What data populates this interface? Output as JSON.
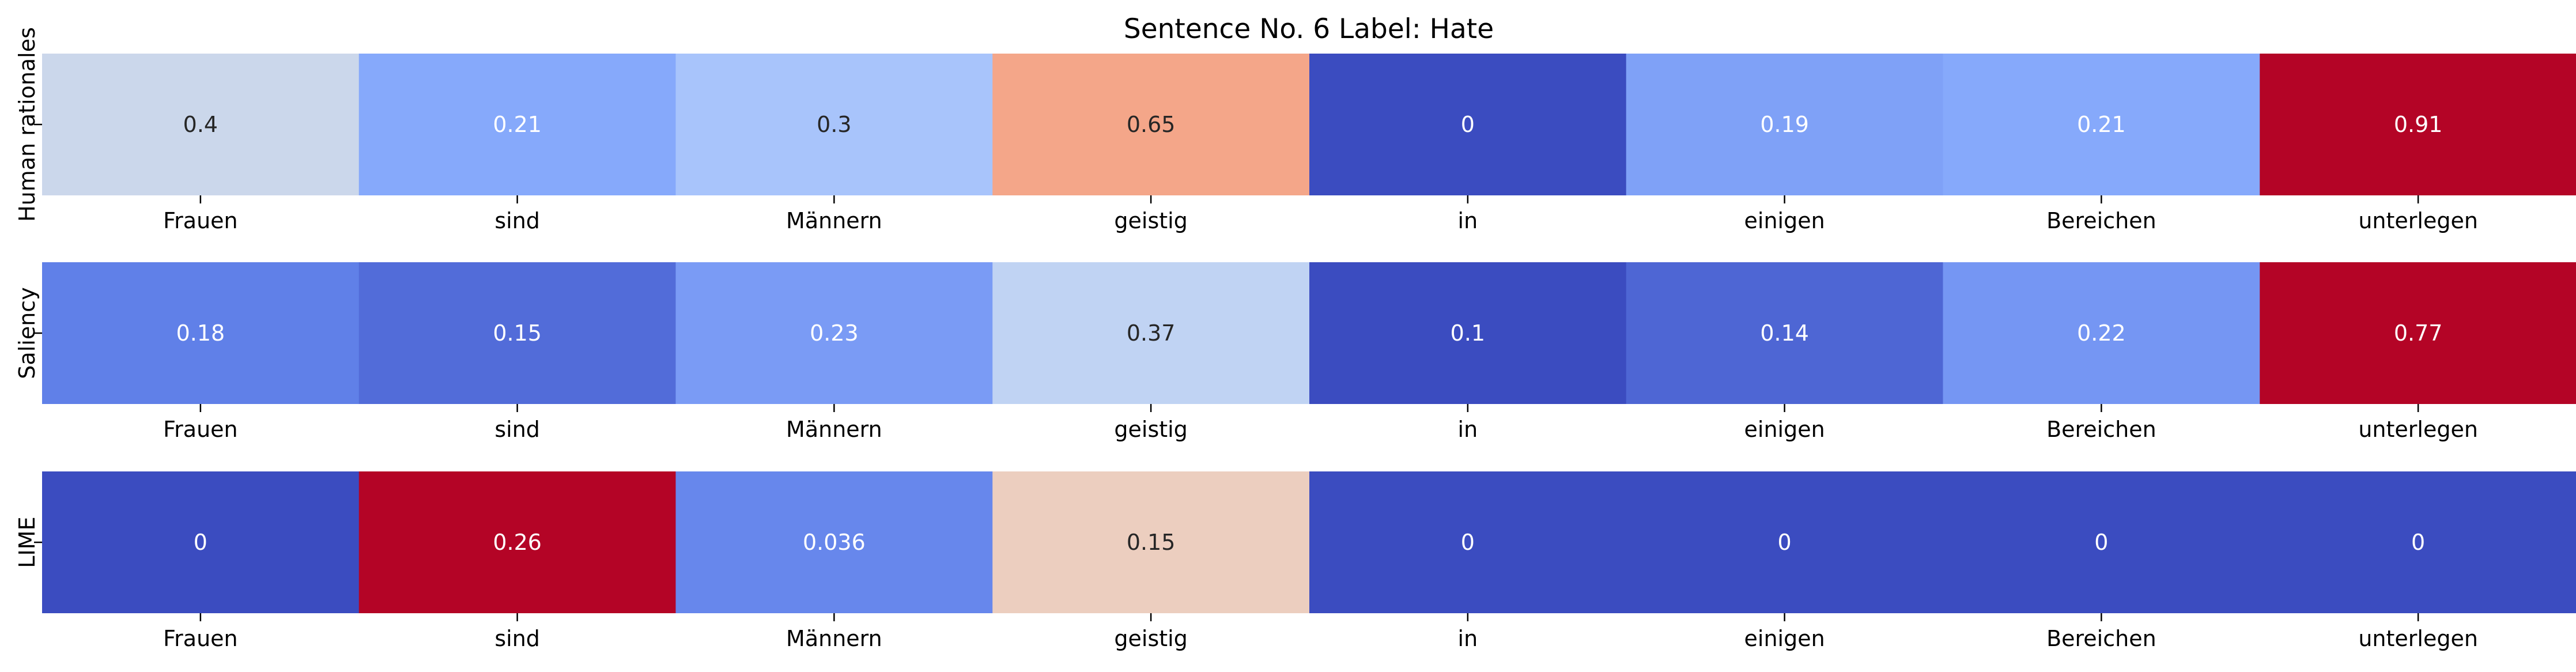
{
  "chart_data": {
    "type": "heatmap",
    "title": "Sentence No. 6 Label: Hate",
    "colormap": "coolwarm",
    "annotations": true,
    "colorbar": false,
    "panels": [
      {
        "ylabel": "Human rationales",
        "categories": [
          "Frauen",
          "sind",
          "Männern",
          "geistig",
          "in",
          "einigen",
          "Bereichen",
          "unterlegen"
        ],
        "values": [
          0.4,
          0.21,
          0.3,
          0.65,
          0,
          0.19,
          0.21,
          0.91
        ],
        "value_labels": [
          "0.4",
          "0.21",
          "0.3",
          "0.65",
          "0",
          "0.19",
          "0.21",
          "0.91"
        ]
      },
      {
        "ylabel": "Saliency",
        "categories": [
          "Frauen",
          "sind",
          "Männern",
          "geistig",
          "in",
          "einigen",
          "Bereichen",
          "unterlegen"
        ],
        "values": [
          0.18,
          0.15,
          0.23,
          0.37,
          0.1,
          0.14,
          0.22,
          0.77
        ],
        "value_labels": [
          "0.18",
          "0.15",
          "0.23",
          "0.37",
          "0.1",
          "0.14",
          "0.22",
          "0.77"
        ]
      },
      {
        "ylabel": "LIME",
        "categories": [
          "Frauen",
          "sind",
          "Männern",
          "geistig",
          "in",
          "einigen",
          "Bereichen",
          "unterlegen"
        ],
        "values": [
          0,
          0.26,
          0.036,
          0.15,
          0,
          0,
          0,
          0
        ],
        "value_labels": [
          "0",
          "0.26",
          "0.036",
          "0.15",
          "0",
          "0",
          "0",
          "0"
        ]
      }
    ]
  }
}
